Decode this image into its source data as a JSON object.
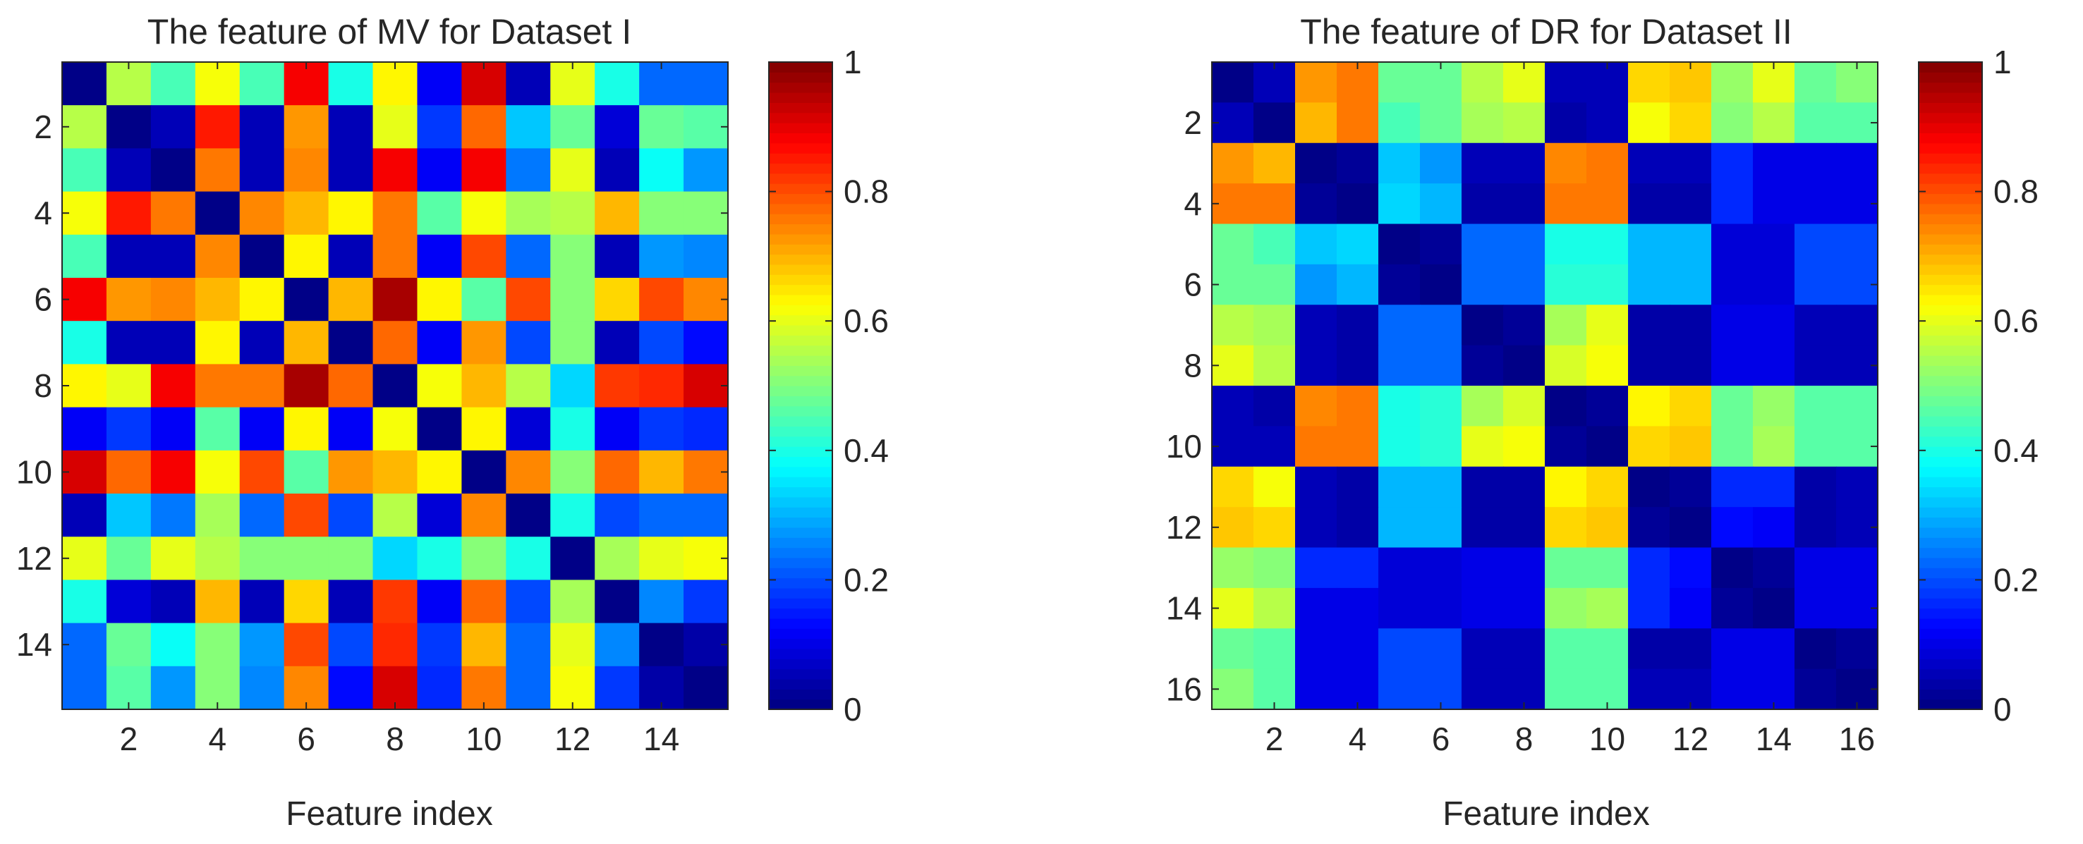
{
  "colormap": "jet",
  "chart_data": [
    {
      "type": "heatmap",
      "title": "The feature of MV for Dataset I",
      "xlabel": "Feature index",
      "ylabel": "",
      "n": 15,
      "xticks": [
        "2",
        "4",
        "6",
        "8",
        "10",
        "12",
        "14"
      ],
      "yticks": [
        "2",
        "4",
        "6",
        "8",
        "10",
        "12",
        "14"
      ],
      "colorbar": {
        "min": 0,
        "max": 1,
        "ticks": [
          "0",
          "0.2",
          "0.4",
          "0.6",
          "0.8",
          "1"
        ]
      },
      "values": [
        [
          0.0,
          0.55,
          0.45,
          0.62,
          0.45,
          0.88,
          0.4,
          0.64,
          0.12,
          0.92,
          0.06,
          0.6,
          0.4,
          0.22,
          0.22
        ],
        [
          0.55,
          0.0,
          0.06,
          0.85,
          0.06,
          0.72,
          0.06,
          0.6,
          0.18,
          0.78,
          0.32,
          0.48,
          0.08,
          0.48,
          0.46
        ],
        [
          0.45,
          0.06,
          0.0,
          0.76,
          0.06,
          0.74,
          0.06,
          0.88,
          0.12,
          0.88,
          0.24,
          0.6,
          0.06,
          0.38,
          0.28
        ],
        [
          0.62,
          0.85,
          0.76,
          0.0,
          0.74,
          0.7,
          0.64,
          0.76,
          0.46,
          0.62,
          0.54,
          0.56,
          0.7,
          0.5,
          0.5
        ],
        [
          0.45,
          0.06,
          0.06,
          0.74,
          0.0,
          0.64,
          0.06,
          0.76,
          0.12,
          0.8,
          0.22,
          0.5,
          0.06,
          0.28,
          0.26
        ],
        [
          0.88,
          0.72,
          0.74,
          0.7,
          0.64,
          0.0,
          0.7,
          0.96,
          0.64,
          0.46,
          0.8,
          0.5,
          0.66,
          0.8,
          0.74
        ],
        [
          0.4,
          0.06,
          0.06,
          0.64,
          0.06,
          0.7,
          0.0,
          0.78,
          0.12,
          0.72,
          0.2,
          0.5,
          0.06,
          0.2,
          0.14
        ],
        [
          0.64,
          0.6,
          0.88,
          0.76,
          0.76,
          0.96,
          0.78,
          0.0,
          0.62,
          0.7,
          0.56,
          0.34,
          0.82,
          0.84,
          0.92
        ],
        [
          0.12,
          0.18,
          0.12,
          0.46,
          0.12,
          0.64,
          0.12,
          0.62,
          0.0,
          0.64,
          0.08,
          0.4,
          0.12,
          0.18,
          0.16
        ],
        [
          0.92,
          0.78,
          0.88,
          0.62,
          0.8,
          0.46,
          0.72,
          0.7,
          0.64,
          0.0,
          0.74,
          0.5,
          0.78,
          0.7,
          0.76
        ],
        [
          0.06,
          0.32,
          0.24,
          0.54,
          0.22,
          0.8,
          0.2,
          0.56,
          0.08,
          0.74,
          0.0,
          0.4,
          0.2,
          0.22,
          0.22
        ],
        [
          0.6,
          0.48,
          0.6,
          0.56,
          0.5,
          0.5,
          0.5,
          0.34,
          0.4,
          0.5,
          0.4,
          0.0,
          0.54,
          0.6,
          0.62
        ],
        [
          0.4,
          0.08,
          0.06,
          0.7,
          0.06,
          0.66,
          0.06,
          0.82,
          0.12,
          0.78,
          0.2,
          0.54,
          0.0,
          0.26,
          0.18
        ],
        [
          0.22,
          0.48,
          0.38,
          0.5,
          0.28,
          0.8,
          0.2,
          0.84,
          0.18,
          0.7,
          0.22,
          0.6,
          0.26,
          0.0,
          0.04
        ],
        [
          0.22,
          0.46,
          0.28,
          0.5,
          0.26,
          0.74,
          0.14,
          0.92,
          0.16,
          0.76,
          0.22,
          0.62,
          0.18,
          0.04,
          0.0
        ]
      ]
    },
    {
      "type": "heatmap",
      "title": "The feature of DR for Dataset II",
      "xlabel": "Feature index",
      "ylabel": "",
      "n": 16,
      "xticks": [
        "2",
        "4",
        "6",
        "8",
        "10",
        "12",
        "14",
        "16"
      ],
      "yticks": [
        "2",
        "4",
        "6",
        "8",
        "10",
        "12",
        "14",
        "16"
      ],
      "colorbar": {
        "min": 0,
        "max": 1,
        "ticks": [
          "0",
          "0.2",
          "0.4",
          "0.6",
          "0.8",
          "1"
        ]
      },
      "values": [
        [
          0.0,
          0.06,
          0.72,
          0.76,
          0.48,
          0.48,
          0.56,
          0.6,
          0.06,
          0.06,
          0.66,
          0.68,
          0.52,
          0.6,
          0.48,
          0.5
        ],
        [
          0.06,
          0.0,
          0.7,
          0.76,
          0.44,
          0.48,
          0.54,
          0.56,
          0.04,
          0.06,
          0.62,
          0.66,
          0.5,
          0.56,
          0.46,
          0.46
        ],
        [
          0.72,
          0.7,
          0.0,
          0.02,
          0.32,
          0.28,
          0.06,
          0.06,
          0.74,
          0.76,
          0.06,
          0.06,
          0.16,
          0.1,
          0.1,
          0.1
        ],
        [
          0.76,
          0.76,
          0.02,
          0.0,
          0.34,
          0.3,
          0.04,
          0.04,
          0.76,
          0.76,
          0.04,
          0.04,
          0.16,
          0.1,
          0.1,
          0.1
        ],
        [
          0.48,
          0.44,
          0.32,
          0.34,
          0.0,
          0.02,
          0.22,
          0.22,
          0.4,
          0.4,
          0.3,
          0.3,
          0.08,
          0.08,
          0.2,
          0.2
        ],
        [
          0.48,
          0.48,
          0.28,
          0.3,
          0.02,
          0.0,
          0.22,
          0.22,
          0.42,
          0.42,
          0.3,
          0.3,
          0.08,
          0.08,
          0.2,
          0.2
        ],
        [
          0.56,
          0.54,
          0.06,
          0.04,
          0.22,
          0.22,
          0.0,
          0.02,
          0.54,
          0.6,
          0.04,
          0.04,
          0.1,
          0.1,
          0.06,
          0.06
        ],
        [
          0.6,
          0.56,
          0.06,
          0.04,
          0.22,
          0.22,
          0.02,
          0.0,
          0.58,
          0.62,
          0.04,
          0.04,
          0.1,
          0.1,
          0.06,
          0.06
        ],
        [
          0.06,
          0.04,
          0.74,
          0.76,
          0.4,
          0.42,
          0.54,
          0.58,
          0.0,
          0.02,
          0.64,
          0.66,
          0.48,
          0.52,
          0.46,
          0.46
        ],
        [
          0.06,
          0.06,
          0.76,
          0.76,
          0.4,
          0.42,
          0.6,
          0.62,
          0.02,
          0.0,
          0.66,
          0.68,
          0.48,
          0.54,
          0.46,
          0.46
        ],
        [
          0.66,
          0.62,
          0.06,
          0.04,
          0.3,
          0.3,
          0.04,
          0.04,
          0.64,
          0.66,
          0.0,
          0.02,
          0.16,
          0.16,
          0.04,
          0.06
        ],
        [
          0.68,
          0.66,
          0.06,
          0.04,
          0.3,
          0.3,
          0.04,
          0.04,
          0.66,
          0.68,
          0.02,
          0.0,
          0.14,
          0.12,
          0.04,
          0.06
        ],
        [
          0.52,
          0.5,
          0.16,
          0.16,
          0.08,
          0.08,
          0.1,
          0.1,
          0.48,
          0.48,
          0.16,
          0.14,
          0.0,
          0.02,
          0.1,
          0.1
        ],
        [
          0.6,
          0.56,
          0.1,
          0.1,
          0.08,
          0.08,
          0.1,
          0.1,
          0.52,
          0.54,
          0.16,
          0.12,
          0.02,
          0.0,
          0.1,
          0.1
        ],
        [
          0.48,
          0.46,
          0.1,
          0.1,
          0.2,
          0.2,
          0.06,
          0.06,
          0.46,
          0.46,
          0.04,
          0.04,
          0.1,
          0.1,
          0.0,
          0.02
        ],
        [
          0.5,
          0.46,
          0.1,
          0.1,
          0.2,
          0.2,
          0.06,
          0.06,
          0.46,
          0.46,
          0.06,
          0.06,
          0.1,
          0.1,
          0.02,
          0.0
        ]
      ]
    }
  ]
}
